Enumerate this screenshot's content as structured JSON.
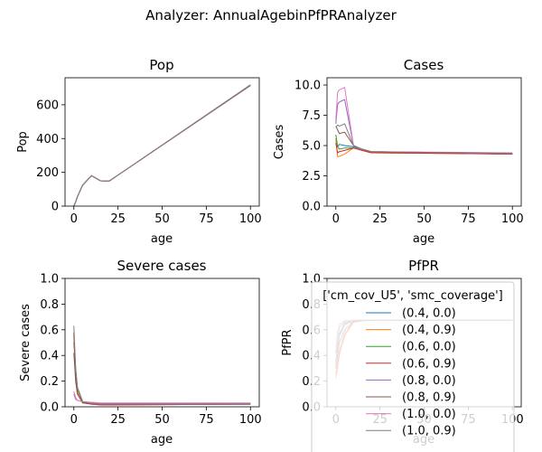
{
  "chart_data": {
    "suptitle": "Analyzer: AnnualAgebinPfPRAnalyzer",
    "type": "line",
    "x_label": "age",
    "x": [
      0,
      1,
      2,
      5,
      10,
      15,
      20,
      100
    ],
    "x_ticks": [
      0,
      25,
      50,
      75,
      100
    ],
    "xlim": [
      -5,
      105
    ],
    "series_names": [
      "(0.4, 0.0)",
      "(0.4, 0.9)",
      "(0.6, 0.0)",
      "(0.6, 0.9)",
      "(0.8, 0.0)",
      "(0.8, 0.9)",
      "(1.0, 0.0)",
      "(1.0, 0.9)"
    ],
    "series_colors": [
      "#1f77b4",
      "#ff7f0e",
      "#2ca02c",
      "#d62728",
      "#9467bd",
      "#8c564b",
      "#e377c2",
      "#7f7f7f"
    ],
    "legend": {
      "title": "['cm_cov_U5', 'smc_coverage']",
      "placement": "upper-left over PfPR panel"
    },
    "panels": [
      {
        "title": "Pop",
        "ylabel": "Pop",
        "ylim": [
          0,
          760
        ],
        "yticks": [
          0,
          200,
          400,
          600
        ],
        "ytick_labels": [
          "0",
          "200",
          "400",
          "600"
        ],
        "series": [
          [
            0,
            25,
            55,
            125,
            180,
            150,
            148,
            715
          ],
          [
            0,
            25,
            55,
            125,
            180,
            150,
            148,
            715
          ],
          [
            0,
            25,
            55,
            125,
            180,
            150,
            148,
            715
          ],
          [
            0,
            25,
            55,
            125,
            180,
            150,
            148,
            715
          ],
          [
            0,
            25,
            55,
            125,
            180,
            150,
            148,
            715
          ],
          [
            0,
            25,
            55,
            125,
            180,
            150,
            148,
            715
          ],
          [
            0,
            25,
            55,
            125,
            180,
            150,
            148,
            718
          ],
          [
            0,
            25,
            55,
            125,
            180,
            150,
            148,
            718
          ]
        ]
      },
      {
        "title": "Cases",
        "ylabel": "Cases",
        "ylim": [
          0,
          10.6
        ],
        "yticks": [
          0,
          2.5,
          5.0,
          7.5,
          10.0
        ],
        "ytick_labels": [
          "0.0",
          "2.5",
          "5.0",
          "7.5",
          "10.0"
        ],
        "series": [
          [
            5.4,
            4.9,
            5.1,
            5.0,
            4.9,
            4.7,
            4.45,
            4.3
          ],
          [
            5.6,
            4.1,
            4.1,
            4.3,
            4.8,
            4.6,
            4.4,
            4.3
          ],
          [
            5.9,
            4.9,
            4.7,
            4.8,
            4.8,
            4.6,
            4.45,
            4.3
          ],
          [
            5.2,
            4.4,
            4.5,
            4.6,
            4.8,
            4.6,
            4.4,
            4.3
          ],
          [
            6.8,
            8.4,
            8.6,
            8.8,
            5.0,
            4.7,
            4.5,
            4.35
          ],
          [
            6.6,
            6.3,
            6.0,
            6.1,
            5.0,
            4.7,
            4.5,
            4.35
          ],
          [
            7.1,
            9.4,
            9.6,
            9.8,
            5.0,
            4.7,
            4.5,
            4.4
          ],
          [
            6.5,
            6.7,
            6.6,
            6.8,
            5.0,
            4.7,
            4.5,
            4.35
          ]
        ]
      },
      {
        "title": "Severe cases",
        "ylabel": "Severe cases",
        "ylim": [
          0,
          1.0
        ],
        "yticks": [
          0,
          0.2,
          0.4,
          0.6,
          0.8,
          1.0
        ],
        "ytick_labels": [
          "0.0",
          "0.2",
          "0.4",
          "0.6",
          "0.8",
          "1.0"
        ],
        "series": [
          [
            0.55,
            0.3,
            0.15,
            0.04,
            0.025,
            0.02,
            0.02,
            0.02
          ],
          [
            0.57,
            0.25,
            0.12,
            0.035,
            0.02,
            0.015,
            0.015,
            0.02
          ],
          [
            0.5,
            0.28,
            0.14,
            0.04,
            0.025,
            0.02,
            0.02,
            0.02
          ],
          [
            0.58,
            0.22,
            0.1,
            0.03,
            0.02,
            0.015,
            0.015,
            0.02
          ],
          [
            0.1,
            0.06,
            0.05,
            0.04,
            0.03,
            0.025,
            0.025,
            0.025
          ],
          [
            0.42,
            0.2,
            0.1,
            0.03,
            0.025,
            0.02,
            0.02,
            0.02
          ],
          [
            0.12,
            0.07,
            0.05,
            0.04,
            0.035,
            0.03,
            0.03,
            0.03
          ],
          [
            0.63,
            0.3,
            0.15,
            0.04,
            0.025,
            0.02,
            0.02,
            0.02
          ]
        ]
      },
      {
        "title": "PfPR",
        "ylabel": "PfPR",
        "ylim": [
          0,
          1.0
        ],
        "yticks": [
          0,
          0.2,
          0.4,
          0.6,
          0.8,
          1.0
        ],
        "ytick_labels": [
          "0.0",
          "0.2",
          "0.4",
          "0.6",
          "0.8",
          "1.0"
        ],
        "series": [
          [
            0.3,
            0.45,
            0.55,
            0.64,
            0.67,
            0.675,
            0.675,
            0.675
          ],
          [
            0.22,
            0.3,
            0.4,
            0.55,
            0.66,
            0.67,
            0.675,
            0.675
          ],
          [
            0.33,
            0.48,
            0.57,
            0.65,
            0.67,
            0.675,
            0.675,
            0.675
          ],
          [
            0.25,
            0.33,
            0.43,
            0.57,
            0.66,
            0.67,
            0.675,
            0.675
          ],
          [
            0.42,
            0.55,
            0.62,
            0.66,
            0.675,
            0.675,
            0.675,
            0.675
          ],
          [
            0.3,
            0.4,
            0.5,
            0.6,
            0.665,
            0.67,
            0.675,
            0.675
          ],
          [
            0.45,
            0.58,
            0.64,
            0.67,
            0.675,
            0.675,
            0.675,
            0.675
          ],
          [
            0.35,
            0.48,
            0.57,
            0.64,
            0.67,
            0.675,
            0.675,
            0.675
          ]
        ]
      }
    ]
  }
}
